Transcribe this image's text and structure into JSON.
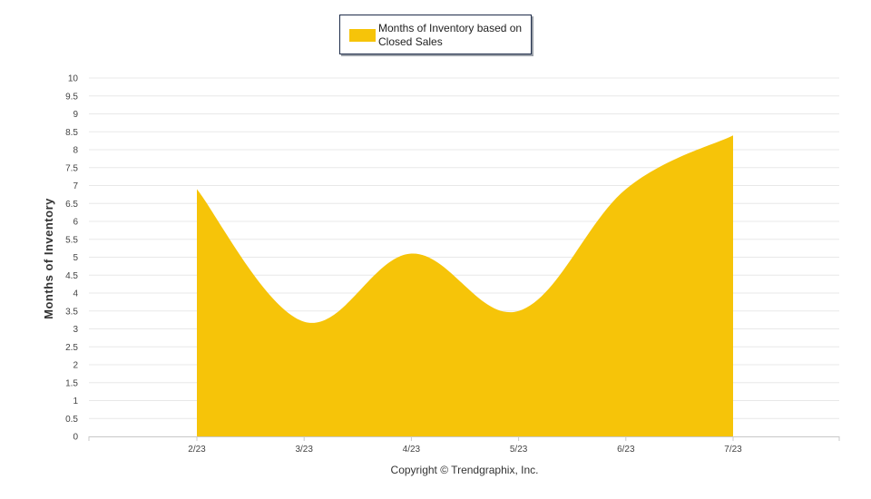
{
  "legend": {
    "label": "Months of Inventory based on Closed Sales"
  },
  "footer": {
    "copyright": "Copyright © Trendgraphix, Inc."
  },
  "chart_data": {
    "type": "area",
    "categories": [
      "2/23",
      "3/23",
      "4/23",
      "5/23",
      "6/23",
      "7/23"
    ],
    "series": [
      {
        "name": "Months of Inventory based on Closed Sales",
        "values": [
          6.9,
          3.2,
          5.1,
          3.5,
          6.9,
          8.4
        ]
      }
    ],
    "ylabel": "Months of Inventory",
    "ylim": [
      0,
      10
    ],
    "yticks": [
      "0",
      "0.5",
      "1",
      "1.5",
      "2",
      "2.5",
      "3",
      "3.5",
      "4",
      "4.5",
      "5",
      "5.5",
      "6",
      "6.5",
      "7",
      "7.5",
      "8",
      "8.5",
      "9",
      "9.5",
      "10"
    ],
    "grid": true,
    "legend_position": "top-center",
    "colors": {
      "fill": "#f6c409",
      "grid": "#e8e8e8",
      "axis": "#c8c8c8"
    }
  }
}
